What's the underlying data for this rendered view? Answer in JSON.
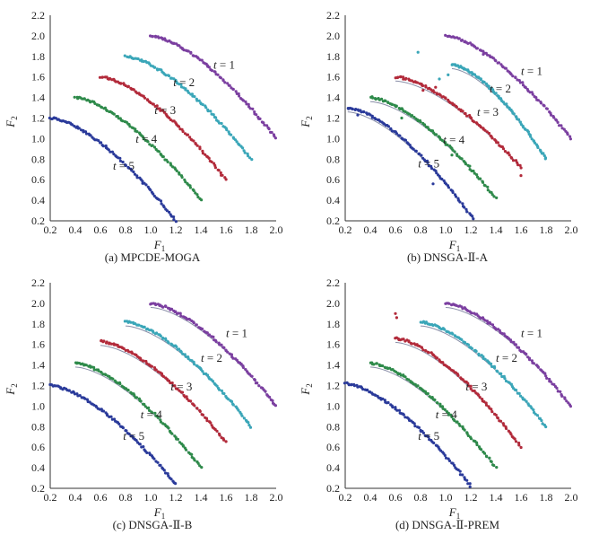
{
  "chart_data": [
    {
      "type": "scatter",
      "caption": "(a) MPCDE-MOGA",
      "xlabel": "F1",
      "ylabel": "F2",
      "xlim": [
        0.2,
        2.0
      ],
      "ylim": [
        0.2,
        2.2
      ],
      "xticks": [
        "0.2",
        "0.4",
        "0.6",
        "0.8",
        "1.0",
        "1.2",
        "1.4",
        "1.6",
        "1.8",
        "2.0"
      ],
      "yticks": [
        "0.2",
        "0.4",
        "0.6",
        "0.8",
        "1.0",
        "1.2",
        "1.4",
        "1.6",
        "1.8",
        "2.0",
        "2.2"
      ],
      "series": [
        {
          "name": "t = 1",
          "color": "#7b3fa0",
          "x_start": 1.0,
          "x_end": 2.0,
          "y_start": 2.0,
          "y_end": 1.0,
          "label_at": [
            1.5,
            1.68
          ],
          "true_front": false,
          "outliers": []
        },
        {
          "name": "t = 2",
          "color": "#3aa6b8",
          "x_start": 0.8,
          "x_end": 1.8,
          "y_start": 1.8,
          "y_end": 0.8,
          "label_at": [
            1.18,
            1.51
          ],
          "true_front": false,
          "outliers": []
        },
        {
          "name": "t = 3",
          "color": "#b22a3a",
          "x_start": 0.6,
          "x_end": 1.6,
          "y_start": 1.6,
          "y_end": 0.6,
          "label_at": [
            1.03,
            1.24
          ],
          "true_front": false,
          "outliers": []
        },
        {
          "name": "t = 4",
          "color": "#2e8a4a",
          "x_start": 0.4,
          "x_end": 1.4,
          "y_start": 1.4,
          "y_end": 0.4,
          "label_at": [
            0.88,
            0.96
          ],
          "true_front": false,
          "outliers": []
        },
        {
          "name": "t = 5",
          "color": "#2a3a9a",
          "x_start": 0.2,
          "x_end": 1.2,
          "y_start": 1.2,
          "y_end": 0.2,
          "label_at": [
            0.7,
            0.7
          ],
          "true_front": false,
          "outliers": []
        }
      ]
    },
    {
      "type": "scatter",
      "caption": "(b) DNSGA-Ⅱ-A",
      "xlabel": "F1",
      "ylabel": "F2",
      "xlim": [
        0.2,
        2.0
      ],
      "ylim": [
        0.2,
        2.2
      ],
      "xticks": [
        "0.2",
        "0.4",
        "0.6",
        "0.8",
        "1.0",
        "1.2",
        "1.4",
        "1.6",
        "1.8",
        "2.0"
      ],
      "yticks": [
        "0.2",
        "0.4",
        "0.6",
        "0.8",
        "1.0",
        "1.2",
        "1.4",
        "1.6",
        "1.8",
        "2.0",
        "2.2"
      ],
      "series": [
        {
          "name": "t = 1",
          "color": "#7b3fa0",
          "x_start": 1.0,
          "x_end": 2.0,
          "y_start": 2.0,
          "y_end": 1.0,
          "label_at": [
            1.6,
            1.62
          ],
          "true_front": false,
          "outliers": [
            [
              1.3,
              1.82
            ]
          ]
        },
        {
          "name": "t = 2",
          "color": "#3aa6b8",
          "x_start": 1.05,
          "x_end": 1.8,
          "y_start": 1.72,
          "y_end": 0.8,
          "label_at": [
            1.35,
            1.45
          ],
          "true_front": true,
          "outliers": [
            [
              0.78,
              1.84
            ],
            [
              0.95,
              1.58
            ],
            [
              1.02,
              1.62
            ]
          ]
        },
        {
          "name": "t = 3",
          "color": "#b22a3a",
          "x_start": 0.6,
          "x_end": 1.6,
          "y_start": 1.6,
          "y_end": 0.72,
          "label_at": [
            1.25,
            1.22
          ],
          "true_front": true,
          "outliers": [
            [
              0.82,
              1.47
            ],
            [
              1.6,
              0.64
            ],
            [
              0.92,
              1.5
            ]
          ]
        },
        {
          "name": "t = 4",
          "color": "#2e8a4a",
          "x_start": 0.4,
          "x_end": 1.4,
          "y_start": 1.4,
          "y_end": 0.42,
          "label_at": [
            0.98,
            0.95
          ],
          "true_front": true,
          "outliers": [
            [
              0.65,
              1.2
            ],
            [
              1.05,
              0.84
            ]
          ]
        },
        {
          "name": "t = 5",
          "color": "#2a3a9a",
          "x_start": 0.22,
          "x_end": 1.22,
          "y_start": 1.3,
          "y_end": 0.22,
          "label_at": [
            0.78,
            0.72
          ],
          "true_front": true,
          "outliers": [
            [
              0.3,
              1.23
            ],
            [
              0.9,
              0.56
            ]
          ]
        }
      ]
    },
    {
      "type": "scatter",
      "caption": "(c) DNSGA-Ⅱ-B",
      "xlabel": "F1",
      "ylabel": "F2",
      "xlim": [
        0.2,
        2.0
      ],
      "ylim": [
        0.2,
        2.2
      ],
      "xticks": [
        "0.2",
        "0.4",
        "0.6",
        "0.8",
        "1.0",
        "1.2",
        "1.4",
        "1.6",
        "1.8",
        "2.0"
      ],
      "yticks": [
        "0.2",
        "0.4",
        "0.6",
        "0.8",
        "1.0",
        "1.2",
        "1.4",
        "1.6",
        "1.8",
        "2.0",
        "2.2"
      ],
      "series": [
        {
          "name": "t = 1",
          "color": "#7b3fa0",
          "x_start": 1.0,
          "x_end": 2.0,
          "y_start": 2.0,
          "y_end": 1.0,
          "label_at": [
            1.6,
            1.67
          ],
          "true_front": true,
          "outliers": []
        },
        {
          "name": "t = 2",
          "color": "#3aa6b8",
          "x_start": 0.8,
          "x_end": 1.8,
          "y_start": 1.82,
          "y_end": 0.8,
          "label_at": [
            1.4,
            1.43
          ],
          "true_front": true,
          "outliers": []
        },
        {
          "name": "t = 3",
          "color": "#b22a3a",
          "x_start": 0.6,
          "x_end": 1.6,
          "y_start": 1.63,
          "y_end": 0.65,
          "label_at": [
            1.16,
            1.15
          ],
          "true_front": true,
          "outliers": []
        },
        {
          "name": "t = 4",
          "color": "#2e8a4a",
          "x_start": 0.4,
          "x_end": 1.4,
          "y_start": 1.42,
          "y_end": 0.4,
          "label_at": [
            0.92,
            0.88
          ],
          "true_front": true,
          "outliers": []
        },
        {
          "name": "t = 5",
          "color": "#2a3a9a",
          "x_start": 0.2,
          "x_end": 1.2,
          "y_start": 1.2,
          "y_end": 0.24,
          "label_at": [
            0.78,
            0.67
          ],
          "true_front": false,
          "outliers": []
        }
      ]
    },
    {
      "type": "scatter",
      "caption": "(d) DNSGA-Ⅱ-PREM",
      "xlabel": "F1",
      "ylabel": "F2",
      "xlim": [
        0.2,
        2.0
      ],
      "ylim": [
        0.2,
        2.2
      ],
      "xticks": [
        "0.2",
        "0.4",
        "0.6",
        "0.8",
        "1.0",
        "1.2",
        "1.4",
        "1.6",
        "1.8",
        "2.0"
      ],
      "yticks": [
        "0.2",
        "0.4",
        "0.6",
        "0.8",
        "1.0",
        "1.2",
        "1.4",
        "1.6",
        "1.8",
        "2.0",
        "2.2"
      ],
      "series": [
        {
          "name": "t = 1",
          "color": "#7b3fa0",
          "x_start": 1.0,
          "x_end": 2.0,
          "y_start": 2.0,
          "y_end": 1.0,
          "label_at": [
            1.6,
            1.67
          ],
          "true_front": true,
          "outliers": []
        },
        {
          "name": "t = 2",
          "color": "#3aa6b8",
          "x_start": 0.8,
          "x_end": 1.8,
          "y_start": 1.82,
          "y_end": 0.8,
          "label_at": [
            1.4,
            1.43
          ],
          "true_front": true,
          "outliers": []
        },
        {
          "name": "t = 3",
          "color": "#b22a3a",
          "x_start": 0.6,
          "x_end": 1.6,
          "y_start": 1.66,
          "y_end": 0.6,
          "label_at": [
            1.16,
            1.15
          ],
          "true_front": true,
          "outliers": [
            [
              0.6,
              1.9
            ],
            [
              0.61,
              1.86
            ]
          ]
        },
        {
          "name": "t = 4",
          "color": "#2e8a4a",
          "x_start": 0.4,
          "x_end": 1.4,
          "y_start": 1.42,
          "y_end": 0.4,
          "label_at": [
            0.92,
            0.88
          ],
          "true_front": true,
          "outliers": []
        },
        {
          "name": "t = 5",
          "color": "#2a3a9a",
          "x_start": 0.2,
          "x_end": 1.2,
          "y_start": 1.22,
          "y_end": 0.22,
          "label_at": [
            0.78,
            0.67
          ],
          "true_front": false,
          "outliers": []
        }
      ]
    }
  ]
}
